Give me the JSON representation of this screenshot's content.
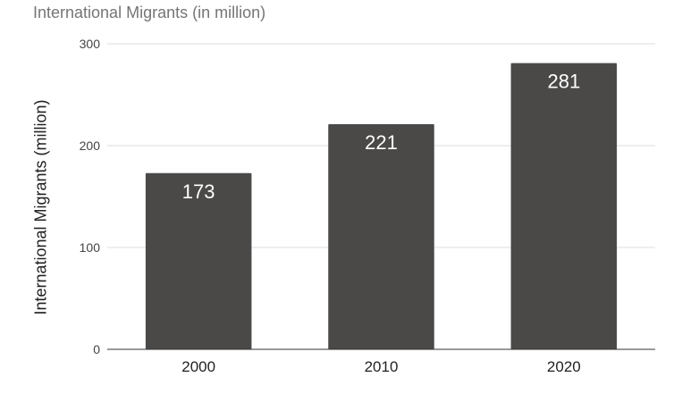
{
  "colors": {
    "bar": "#4a4948",
    "grid": "#dddddd",
    "baseline": "#333333"
  },
  "chart_data": {
    "type": "bar",
    "title": "International Migrants (in million)",
    "xlabel": "",
    "ylabel": "International Migrants (million)",
    "categories": [
      "2000",
      "2010",
      "2020"
    ],
    "values": [
      173,
      221,
      281
    ],
    "data_labels": [
      "173",
      "221",
      "281"
    ],
    "ylim": [
      0,
      300
    ],
    "yticks": [
      0,
      100,
      200,
      300
    ],
    "ytick_labels": [
      "0",
      "100",
      "200",
      "300"
    ],
    "grid": true,
    "legend": "none"
  }
}
